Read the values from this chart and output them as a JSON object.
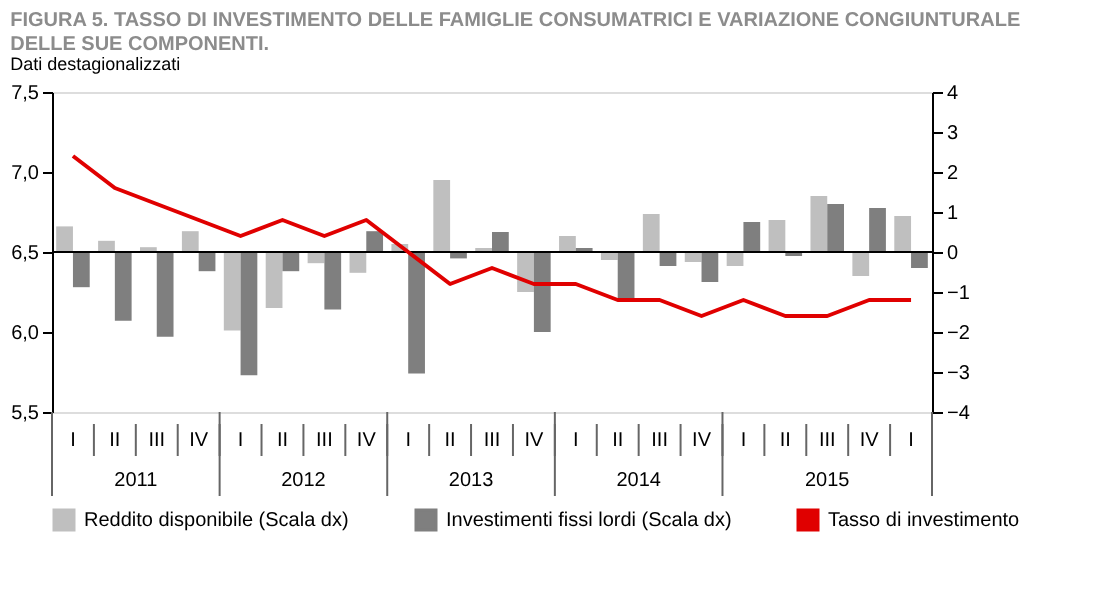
{
  "chart_data": {
    "type": "bar",
    "title": "FIGURA 5. TASSO DI INVESTIMENTO DELLE FAMIGLIE CONSUMATRICI E VARIAZIONE CONGIUNTURALE DELLE SUE COMPONENTI.",
    "subtitle": "Dati destagionalizzati",
    "categories": [
      "I",
      "II",
      "III",
      "IV",
      "I",
      "II",
      "III",
      "IV",
      "I",
      "II",
      "III",
      "IV",
      "I",
      "II",
      "III",
      "IV",
      "I",
      "II",
      "III",
      "IV",
      "I"
    ],
    "annotations": [
      "2011",
      "2012",
      "2013",
      "2014",
      "2015"
    ],
    "series": [
      {
        "name": "Reddito disponibile (Scala dx)",
        "color": "#bfbfbf",
        "axis": "y2",
        "values": [
          0.64,
          0.28,
          0.12,
          0.52,
          -1.96,
          -1.4,
          -0.28,
          -0.52,
          0.2,
          1.8,
          0.1,
          -1.0,
          0.4,
          -0.2,
          0.95,
          -0.25,
          -0.35,
          0.8,
          1.4,
          -0.6,
          0.9
        ]
      },
      {
        "name": "Investimenti fissi lordi (Scala dx)",
        "color": "#7f7f7f",
        "axis": "y2",
        "values": [
          -0.88,
          -1.72,
          -2.12,
          -0.48,
          -3.08,
          -0.48,
          -1.44,
          0.52,
          -3.04,
          -0.16,
          0.5,
          -2.0,
          0.1,
          -1.15,
          -0.35,
          -0.75,
          0.75,
          -0.1,
          1.2,
          1.1,
          -0.4
        ]
      },
      {
        "name": "Tasso di investimento",
        "color": "#e00000",
        "type": "line",
        "values": [
          7.1,
          6.9,
          6.8,
          6.7,
          6.6,
          6.7,
          6.6,
          6.7,
          6.5,
          6.3,
          6.4,
          6.3,
          6.3,
          6.2,
          6.2,
          6.1,
          6.2,
          6.1,
          6.1,
          6.2,
          6.2
        ]
      }
    ],
    "ylim": [
      5.5,
      7.5
    ],
    "yticks": [
      {
        "value": 5.5,
        "label": "5,5"
      },
      {
        "value": 6.0,
        "label": "6,0"
      },
      {
        "value": 6.5,
        "label": "6,5"
      },
      {
        "value": 7.0,
        "label": "7,0"
      },
      {
        "value": 7.5,
        "label": "7,5"
      }
    ],
    "y2lim": [
      -4,
      4
    ],
    "y2ticks": [
      -4,
      -3,
      -2,
      -1,
      0,
      1,
      2,
      3,
      4
    ],
    "ref_lines": [
      {
        "axis": "y2",
        "value": 0,
        "color": "#000000"
      }
    ],
    "grid": false,
    "legend": "bottom"
  }
}
